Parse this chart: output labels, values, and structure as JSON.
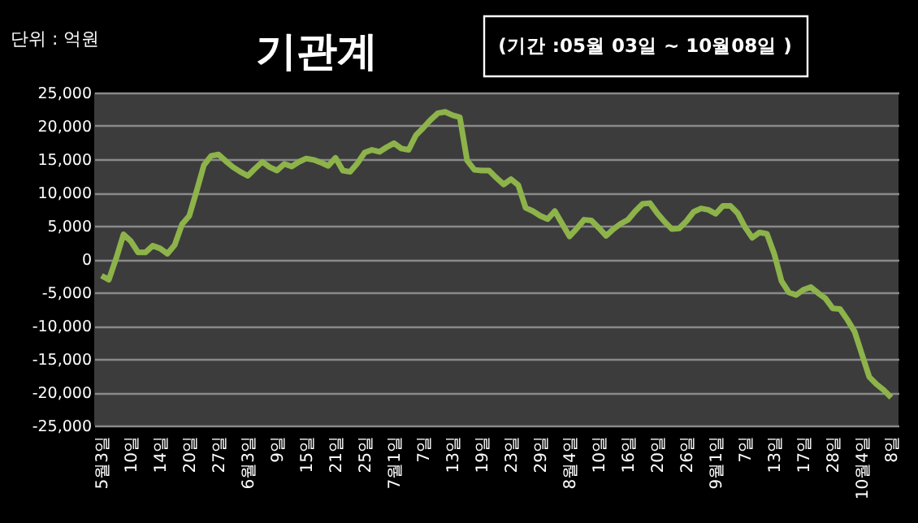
{
  "chart_data": {
    "type": "line",
    "title": "기관계",
    "subtitle": "(기간 :05월 03일 ~ 10월08일 )",
    "ylabel": "단위 : 억원",
    "categories": [
      "5월3일",
      null,
      null,
      null,
      "10일",
      null,
      null,
      null,
      "14일",
      null,
      null,
      null,
      "20일",
      null,
      null,
      null,
      "27일",
      null,
      null,
      null,
      "6월3일",
      null,
      null,
      null,
      "9일",
      null,
      null,
      null,
      "15일",
      null,
      null,
      null,
      "21일",
      null,
      null,
      null,
      "25일",
      null,
      null,
      null,
      "7월1일",
      null,
      null,
      null,
      "7일",
      null,
      null,
      null,
      "13일",
      null,
      null,
      null,
      "19일",
      null,
      null,
      null,
      "23일",
      null,
      null,
      null,
      "29일",
      null,
      null,
      null,
      "8월4일",
      null,
      null,
      null,
      "10일",
      null,
      null,
      null,
      "16일",
      null,
      null,
      null,
      "20일",
      null,
      null,
      null,
      "26일",
      null,
      null,
      null,
      "9월1일",
      null,
      null,
      null,
      "7일",
      null,
      null,
      null,
      "13일",
      null,
      null,
      null,
      "17일",
      null,
      null,
      null,
      "28일",
      null,
      null,
      null,
      "10월4일",
      null,
      null,
      null,
      "8일"
    ],
    "series": [
      {
        "color": "#8db34a",
        "values": [
          -2500,
          -3100,
          100,
          3700,
          2700,
          1000,
          1000,
          2000,
          1600,
          800,
          2100,
          5200,
          6500,
          10200,
          14100,
          15500,
          15700,
          14700,
          13800,
          13100,
          12500,
          13600,
          14600,
          13800,
          13300,
          14300,
          13900,
          14600,
          15100,
          14900,
          14500,
          14000,
          15200,
          13300,
          13100,
          14400,
          16000,
          16400,
          16100,
          16800,
          17400,
          16600,
          16400,
          18600,
          19700,
          20900,
          21900,
          22100,
          21600,
          21300,
          14800,
          13400,
          13300,
          13300,
          12200,
          11200,
          12000,
          11100,
          7700,
          7200,
          6500,
          6000,
          7200,
          5300,
          3400,
          4600,
          5900,
          5800,
          4700,
          3500,
          4500,
          5300,
          5900,
          7200,
          8300,
          8400,
          6900,
          5600,
          4500,
          4600,
          5700,
          7100,
          7600,
          7400,
          6800,
          8000,
          8000,
          6900,
          4800,
          3200,
          4000,
          3800,
          800,
          -3300,
          -5000,
          -5400,
          -4600,
          -4200,
          -5100,
          -5900,
          -7400,
          -7500,
          -9100,
          -10900,
          -14300,
          -17700,
          -18800,
          -19700,
          -20800
        ]
      }
    ],
    "ylim": [
      -25000,
      25000
    ],
    "yticks": [
      {
        "value": -25000,
        "label": "-25,000"
      },
      {
        "value": -20000,
        "label": "-20,000"
      },
      {
        "value": -15000,
        "label": "-15,000"
      },
      {
        "value": -10000,
        "label": "-10,000"
      },
      {
        "value": -5000,
        "label": "-5,000"
      },
      0,
      {
        "value": 5000,
        "label": "5,000"
      },
      {
        "value": 10000,
        "label": "10,000"
      },
      {
        "value": 15000,
        "label": "15,000"
      },
      {
        "value": 20000,
        "label": "20,000"
      },
      {
        "value": 25000,
        "label": "25,000"
      }
    ],
    "grid": "y",
    "legend": false,
    "marker": "none",
    "line_style": "solid"
  }
}
